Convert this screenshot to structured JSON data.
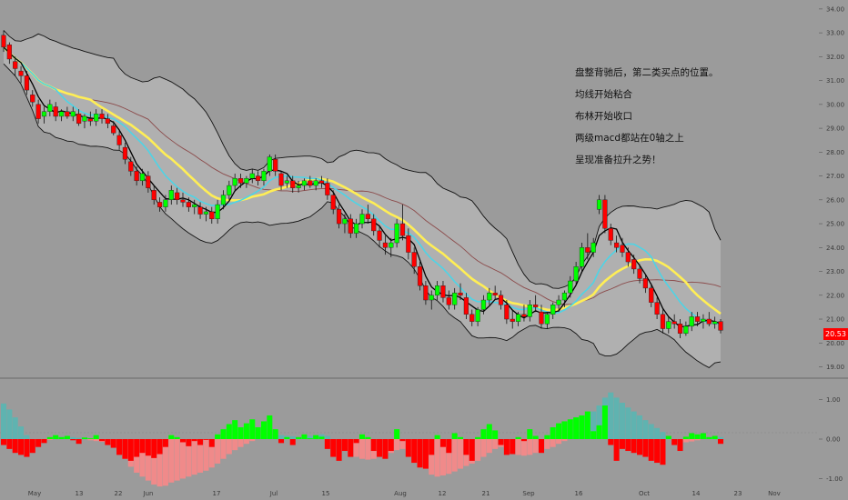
{
  "chart_data": [
    {
      "type": "candlestick",
      "title": "",
      "y_axis_ticks": [
        "34.00",
        "33.00",
        "32.00",
        "31.00",
        "30.00",
        "29.00",
        "28.00",
        "27.00",
        "26.00",
        "25.00",
        "24.00",
        "23.00",
        "22.00",
        "21.00",
        "20.00",
        "19.00"
      ],
      "x_axis_ticks": [
        "May",
        "13",
        "22",
        "Jun",
        "17",
        "Jul",
        "15",
        "Aug",
        "12",
        "21",
        "Sep",
        "16",
        "Oct",
        "14",
        "23",
        "Nov"
      ],
      "ylim": [
        18.6,
        34.3
      ],
      "last_price_label": "20.53",
      "overlays": [
        "Bollinger upper",
        "Bollinger lower",
        "Bollinger middle",
        "short MA",
        "medium MA",
        "long MA"
      ],
      "candles_ohlc": [
        [
          32.9,
          33.1,
          32.2,
          32.4
        ],
        [
          32.5,
          32.6,
          31.7,
          31.9
        ],
        [
          31.8,
          32.0,
          31.2,
          31.5
        ],
        [
          31.4,
          31.6,
          30.9,
          31.2
        ],
        [
          31.2,
          31.4,
          30.4,
          30.6
        ],
        [
          30.4,
          30.6,
          29.9,
          30.1
        ],
        [
          30.0,
          30.2,
          29.2,
          29.4
        ],
        [
          29.5,
          29.9,
          29.2,
          29.7
        ],
        [
          29.7,
          30.2,
          29.5,
          30.0
        ],
        [
          29.9,
          30.1,
          29.3,
          29.5
        ],
        [
          29.5,
          29.8,
          29.3,
          29.7
        ],
        [
          29.7,
          29.9,
          29.4,
          29.5
        ],
        [
          29.5,
          29.9,
          29.3,
          29.7
        ],
        [
          29.6,
          29.8,
          29.1,
          29.2
        ],
        [
          29.3,
          29.6,
          29.0,
          29.5
        ],
        [
          29.4,
          29.7,
          29.1,
          29.3
        ],
        [
          29.3,
          29.8,
          29.1,
          29.6
        ],
        [
          29.6,
          29.8,
          29.2,
          29.4
        ],
        [
          29.4,
          29.6,
          29.0,
          29.2
        ],
        [
          29.1,
          29.3,
          28.7,
          28.8
        ],
        [
          28.7,
          28.9,
          28.1,
          28.3
        ],
        [
          28.2,
          28.4,
          27.5,
          27.7
        ],
        [
          27.6,
          27.8,
          27.0,
          27.2
        ],
        [
          27.2,
          27.4,
          26.6,
          26.8
        ],
        [
          26.8,
          27.3,
          26.6,
          27.1
        ],
        [
          27.0,
          27.2,
          26.3,
          26.5
        ],
        [
          26.4,
          26.6,
          25.8,
          26.0
        ],
        [
          25.9,
          26.1,
          25.5,
          25.7
        ],
        [
          25.7,
          26.2,
          25.5,
          26.0
        ],
        [
          26.0,
          26.6,
          25.8,
          26.4
        ],
        [
          26.3,
          26.5,
          25.8,
          26.0
        ],
        [
          26.0,
          26.3,
          25.7,
          25.9
        ],
        [
          25.9,
          26.1,
          25.5,
          25.7
        ],
        [
          25.7,
          26.0,
          25.4,
          25.8
        ],
        [
          25.7,
          25.9,
          25.2,
          25.4
        ],
        [
          25.4,
          25.7,
          25.1,
          25.5
        ],
        [
          25.5,
          25.7,
          25.0,
          25.2
        ],
        [
          25.2,
          26.0,
          25.0,
          25.8
        ],
        [
          25.8,
          26.4,
          25.6,
          26.2
        ],
        [
          26.2,
          26.8,
          26.0,
          26.6
        ],
        [
          26.6,
          27.1,
          26.4,
          26.9
        ],
        [
          26.9,
          27.1,
          26.5,
          26.7
        ],
        [
          26.7,
          27.0,
          26.5,
          26.9
        ],
        [
          26.9,
          27.3,
          26.7,
          27.1
        ],
        [
          27.0,
          27.2,
          26.6,
          26.8
        ],
        [
          26.8,
          27.3,
          26.6,
          27.2
        ],
        [
          27.2,
          27.9,
          27.0,
          27.8
        ],
        [
          27.7,
          27.9,
          27.0,
          27.2
        ],
        [
          27.1,
          27.2,
          26.4,
          26.6
        ],
        [
          26.7,
          27.0,
          26.5,
          26.8
        ],
        [
          26.8,
          27.0,
          26.3,
          26.5
        ],
        [
          26.5,
          26.8,
          26.3,
          26.6
        ],
        [
          26.6,
          26.9,
          26.4,
          26.8
        ],
        [
          26.8,
          27.0,
          26.5,
          26.6
        ],
        [
          26.6,
          26.9,
          26.4,
          26.8
        ],
        [
          26.8,
          27.0,
          26.5,
          26.7
        ],
        [
          26.7,
          26.9,
          26.0,
          26.2
        ],
        [
          26.2,
          26.4,
          25.4,
          25.6
        ],
        [
          25.6,
          25.8,
          24.8,
          25.0
        ],
        [
          25.0,
          25.4,
          24.6,
          25.2
        ],
        [
          25.2,
          25.4,
          24.4,
          24.6
        ],
        [
          24.6,
          25.2,
          24.4,
          25.0
        ],
        [
          25.0,
          25.6,
          24.8,
          25.4
        ],
        [
          25.4,
          25.8,
          25.0,
          25.2
        ],
        [
          25.2,
          25.4,
          24.5,
          24.7
        ],
        [
          24.7,
          24.9,
          24.0,
          24.3
        ],
        [
          24.2,
          24.5,
          23.7,
          24.0
        ],
        [
          24.0,
          24.4,
          23.6,
          24.2
        ],
        [
          24.2,
          25.2,
          24.0,
          25.0
        ],
        [
          25.0,
          25.8,
          24.3,
          24.5
        ],
        [
          24.5,
          24.8,
          23.5,
          23.8
        ],
        [
          23.8,
          24.0,
          22.9,
          23.2
        ],
        [
          23.2,
          23.4,
          22.2,
          22.4
        ],
        [
          22.4,
          22.6,
          21.6,
          21.8
        ],
        [
          21.8,
          22.2,
          21.4,
          22.0
        ],
        [
          22.0,
          22.6,
          21.8,
          22.4
        ],
        [
          22.4,
          22.6,
          21.7,
          21.9
        ],
        [
          21.9,
          22.2,
          21.4,
          21.6
        ],
        [
          21.6,
          22.3,
          21.4,
          22.1
        ],
        [
          22.1,
          22.5,
          21.8,
          22.0
        ],
        [
          21.9,
          22.1,
          21.0,
          21.2
        ],
        [
          21.2,
          21.4,
          20.7,
          20.9
        ],
        [
          20.9,
          21.5,
          20.7,
          21.4
        ],
        [
          21.4,
          22.0,
          21.2,
          21.8
        ],
        [
          21.8,
          22.3,
          21.6,
          22.1
        ],
        [
          22.1,
          22.4,
          21.8,
          22.0
        ],
        [
          22.0,
          22.2,
          21.4,
          21.6
        ],
        [
          21.6,
          21.8,
          20.8,
          21.0
        ],
        [
          21.0,
          21.4,
          20.6,
          20.9
        ],
        [
          20.9,
          21.3,
          20.7,
          21.2
        ],
        [
          21.2,
          21.6,
          20.9,
          21.1
        ],
        [
          21.1,
          21.8,
          20.9,
          21.6
        ],
        [
          21.6,
          22.0,
          21.3,
          21.5
        ],
        [
          21.3,
          21.6,
          20.6,
          20.8
        ],
        [
          20.8,
          21.3,
          20.6,
          21.2
        ],
        [
          21.2,
          21.7,
          21.0,
          21.6
        ],
        [
          21.6,
          22.0,
          21.3,
          21.8
        ],
        [
          21.8,
          22.2,
          21.5,
          22.1
        ],
        [
          22.1,
          22.8,
          21.9,
          22.6
        ],
        [
          22.6,
          23.4,
          22.4,
          23.2
        ],
        [
          23.2,
          24.2,
          23.0,
          24.0
        ],
        [
          24.0,
          24.6,
          23.5,
          23.8
        ],
        [
          23.8,
          24.4,
          23.6,
          24.2
        ],
        [
          25.6,
          26.2,
          25.4,
          26.0
        ],
        [
          26.0,
          26.2,
          24.6,
          24.8
        ],
        [
          24.8,
          25.0,
          24.1,
          24.3
        ],
        [
          24.2,
          24.5,
          23.8,
          24.0
        ],
        [
          24.1,
          24.4,
          23.6,
          23.8
        ],
        [
          23.8,
          24.0,
          23.2,
          23.4
        ],
        [
          23.5,
          23.7,
          22.9,
          23.1
        ],
        [
          23.1,
          23.3,
          22.5,
          22.7
        ],
        [
          22.7,
          22.9,
          22.1,
          22.3
        ],
        [
          22.3,
          22.5,
          21.5,
          21.7
        ],
        [
          21.7,
          21.9,
          21.0,
          21.2
        ],
        [
          21.2,
          21.4,
          20.4,
          20.6
        ],
        [
          20.6,
          21.1,
          20.4,
          20.9
        ],
        [
          20.9,
          21.2,
          20.6,
          20.8
        ],
        [
          20.8,
          21.0,
          20.2,
          20.4
        ],
        [
          20.4,
          20.9,
          20.3,
          20.7
        ],
        [
          20.7,
          21.3,
          20.5,
          21.1
        ],
        [
          21.1,
          21.3,
          20.7,
          20.9
        ],
        [
          20.9,
          21.2,
          20.6,
          21.0
        ],
        [
          21.0,
          21.3,
          20.7,
          20.8
        ],
        [
          20.8,
          21.1,
          20.6,
          20.9
        ],
        [
          20.9,
          21.0,
          20.4,
          20.53
        ]
      ],
      "histogram_y_axis_ticks": [
        "1.00",
        "0.00",
        "-1.00"
      ],
      "histogram_ylim": [
        -1.45,
        1.45
      ],
      "histogram_long": [
        0.9,
        0.75,
        0.55,
        0.32,
        0.1,
        -0.05,
        -0.08,
        -0.06,
        -0.02,
        0.02,
        0.05,
        0.06,
        0.05,
        0.03,
        0.0,
        -0.03,
        -0.05,
        -0.07,
        -0.1,
        -0.15,
        -0.3,
        -0.5,
        -0.7,
        -0.85,
        -0.95,
        -1.05,
        -1.15,
        -1.2,
        -1.18,
        -1.1,
        -1.05,
        -1.0,
        -0.95,
        -0.9,
        -0.85,
        -0.8,
        -0.72,
        -0.62,
        -0.5,
        -0.38,
        -0.28,
        -0.2,
        -0.12,
        -0.05,
        0.0,
        0.05,
        0.1,
        0.12,
        0.1,
        0.08,
        0.07,
        0.05,
        0.06,
        0.08,
        0.1,
        0.12,
        0.08,
        0.0,
        -0.1,
        -0.22,
        -0.35,
        -0.45,
        -0.5,
        -0.52,
        -0.5,
        -0.45,
        -0.4,
        -0.35,
        -0.28,
        -0.25,
        -0.3,
        -0.45,
        -0.6,
        -0.75,
        -0.9,
        -0.95,
        -0.92,
        -0.88,
        -0.82,
        -0.75,
        -0.68,
        -0.62,
        -0.55,
        -0.45,
        -0.35,
        -0.25,
        -0.2,
        -0.25,
        -0.32,
        -0.4,
        -0.42,
        -0.4,
        -0.35,
        -0.3,
        -0.25,
        -0.2,
        -0.12,
        -0.05,
        0.05,
        0.2,
        0.38,
        0.55,
        0.7,
        0.85,
        1.05,
        1.18,
        1.05,
        0.92,
        0.8,
        0.7,
        0.6,
        0.48,
        0.38,
        0.28,
        0.18,
        0.08,
        0.0,
        -0.05,
        -0.08,
        -0.06,
        -0.03,
        0.0,
        0.02,
        0.04,
        0.05
      ],
      "histogram_short": [
        -0.15,
        -0.25,
        -0.35,
        -0.4,
        -0.45,
        -0.35,
        -0.2,
        -0.1,
        0.05,
        0.1,
        0.05,
        0.08,
        -0.03,
        -0.12,
        0.04,
        0.02,
        0.1,
        -0.05,
        -0.15,
        -0.22,
        -0.4,
        -0.5,
        -0.55,
        -0.45,
        -0.35,
        -0.42,
        -0.48,
        -0.38,
        -0.2,
        0.1,
        0.05,
        -0.08,
        -0.18,
        -0.05,
        -0.15,
        -0.02,
        -0.2,
        0.12,
        0.25,
        0.38,
        0.48,
        0.3,
        0.4,
        0.5,
        0.3,
        0.45,
        0.6,
        0.25,
        -0.1,
        0.05,
        -0.15,
        0.05,
        0.12,
        0.02,
        0.1,
        0.06,
        -0.25,
        -0.45,
        -0.55,
        -0.3,
        -0.45,
        -0.1,
        0.12,
        0.05,
        -0.3,
        -0.45,
        -0.5,
        -0.3,
        0.25,
        -0.05,
        -0.45,
        -0.6,
        -0.72,
        -0.75,
        -0.4,
        0.1,
        -0.2,
        -0.35,
        0.15,
        0.05,
        -0.4,
        -0.55,
        0.05,
        0.25,
        0.38,
        0.22,
        -0.15,
        -0.4,
        -0.38,
        0.05,
        -0.05,
        0.25,
        0.08,
        -0.35,
        0.1,
        0.3,
        0.4,
        0.45,
        0.5,
        0.55,
        0.6,
        0.7,
        0.2,
        0.35,
        0.85,
        -0.15,
        -0.55,
        -0.25,
        -0.3,
        -0.35,
        -0.4,
        -0.45,
        -0.55,
        -0.6,
        -0.65,
        0.08,
        -0.15,
        -0.3,
        0.06,
        0.15,
        0.12,
        0.15,
        0.05,
        0.08,
        -0.12
      ]
    }
  ],
  "annotation": {
    "line1": "盘整背驰后，第二类买点的位置。",
    "line2": "均线开始粘合",
    "line3": "布林开始收口",
    "line4": "两级macd都站在0轴之上",
    "line5": "呈现准备拉升之势！"
  },
  "colors": {
    "background": "#9b9b9b",
    "up": "#00ff00",
    "down": "#ff0000",
    "ma_short": "#000000",
    "ma_medium": "#4dd4e6",
    "ma_long": "#ffee55",
    "ma_extra": "#8b4a4a",
    "band_fill": "#b4b4b4",
    "hist_long_pos": "#5fb3b0",
    "hist_long_neg": "#f08a8a"
  }
}
